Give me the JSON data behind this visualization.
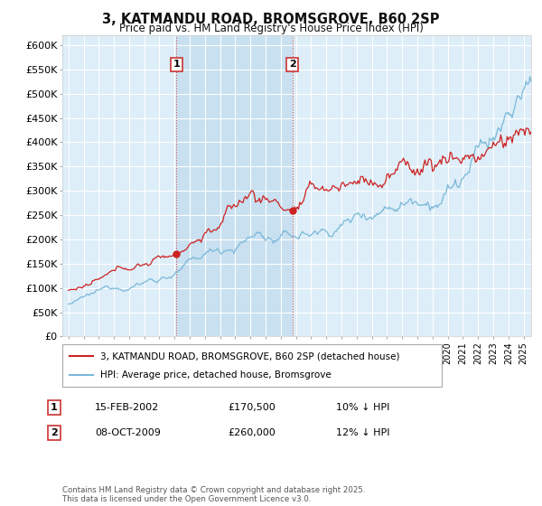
{
  "title": "3, KATMANDU ROAD, BROMSGROVE, B60 2SP",
  "subtitle": "Price paid vs. HM Land Registry's House Price Index (HPI)",
  "ylabel_ticks": [
    "£0",
    "£50K",
    "£100K",
    "£150K",
    "£200K",
    "£250K",
    "£300K",
    "£350K",
    "£400K",
    "£450K",
    "£500K",
    "£550K",
    "£600K"
  ],
  "ylim": [
    0,
    620000
  ],
  "ytick_vals": [
    0,
    50000,
    100000,
    150000,
    200000,
    250000,
    300000,
    350000,
    400000,
    450000,
    500000,
    550000,
    600000
  ],
  "xlim_start": 1994.6,
  "xlim_end": 2025.5,
  "line_color_hpi": "#7ab8d9",
  "line_color_price": "#cc2222",
  "marker1_x": 2002.12,
  "marker2_x": 2009.77,
  "marker1_price": 170500,
  "marker2_price": 260000,
  "legend_label_price": "3, KATMANDU ROAD, BROMSGROVE, B60 2SP (detached house)",
  "legend_label_hpi": "HPI: Average price, detached house, Bromsgrove",
  "annotation1_num": "1",
  "annotation1_date": "15-FEB-2002",
  "annotation1_price": "£170,500",
  "annotation1_hpi": "10% ↓ HPI",
  "annotation2_num": "2",
  "annotation2_date": "08-OCT-2009",
  "annotation2_price": "£260,000",
  "annotation2_hpi": "12% ↓ HPI",
  "footer": "Contains HM Land Registry data © Crown copyright and database right 2025.\nThis data is licensed under the Open Government Licence v3.0.",
  "bg_color": "#ffffff",
  "plot_bg_color": "#ddeef8",
  "plot_bg_between": "#c8e0f0",
  "grid_color": "#ffffff",
  "vline_color": "#dd4444",
  "vline_style": ":"
}
